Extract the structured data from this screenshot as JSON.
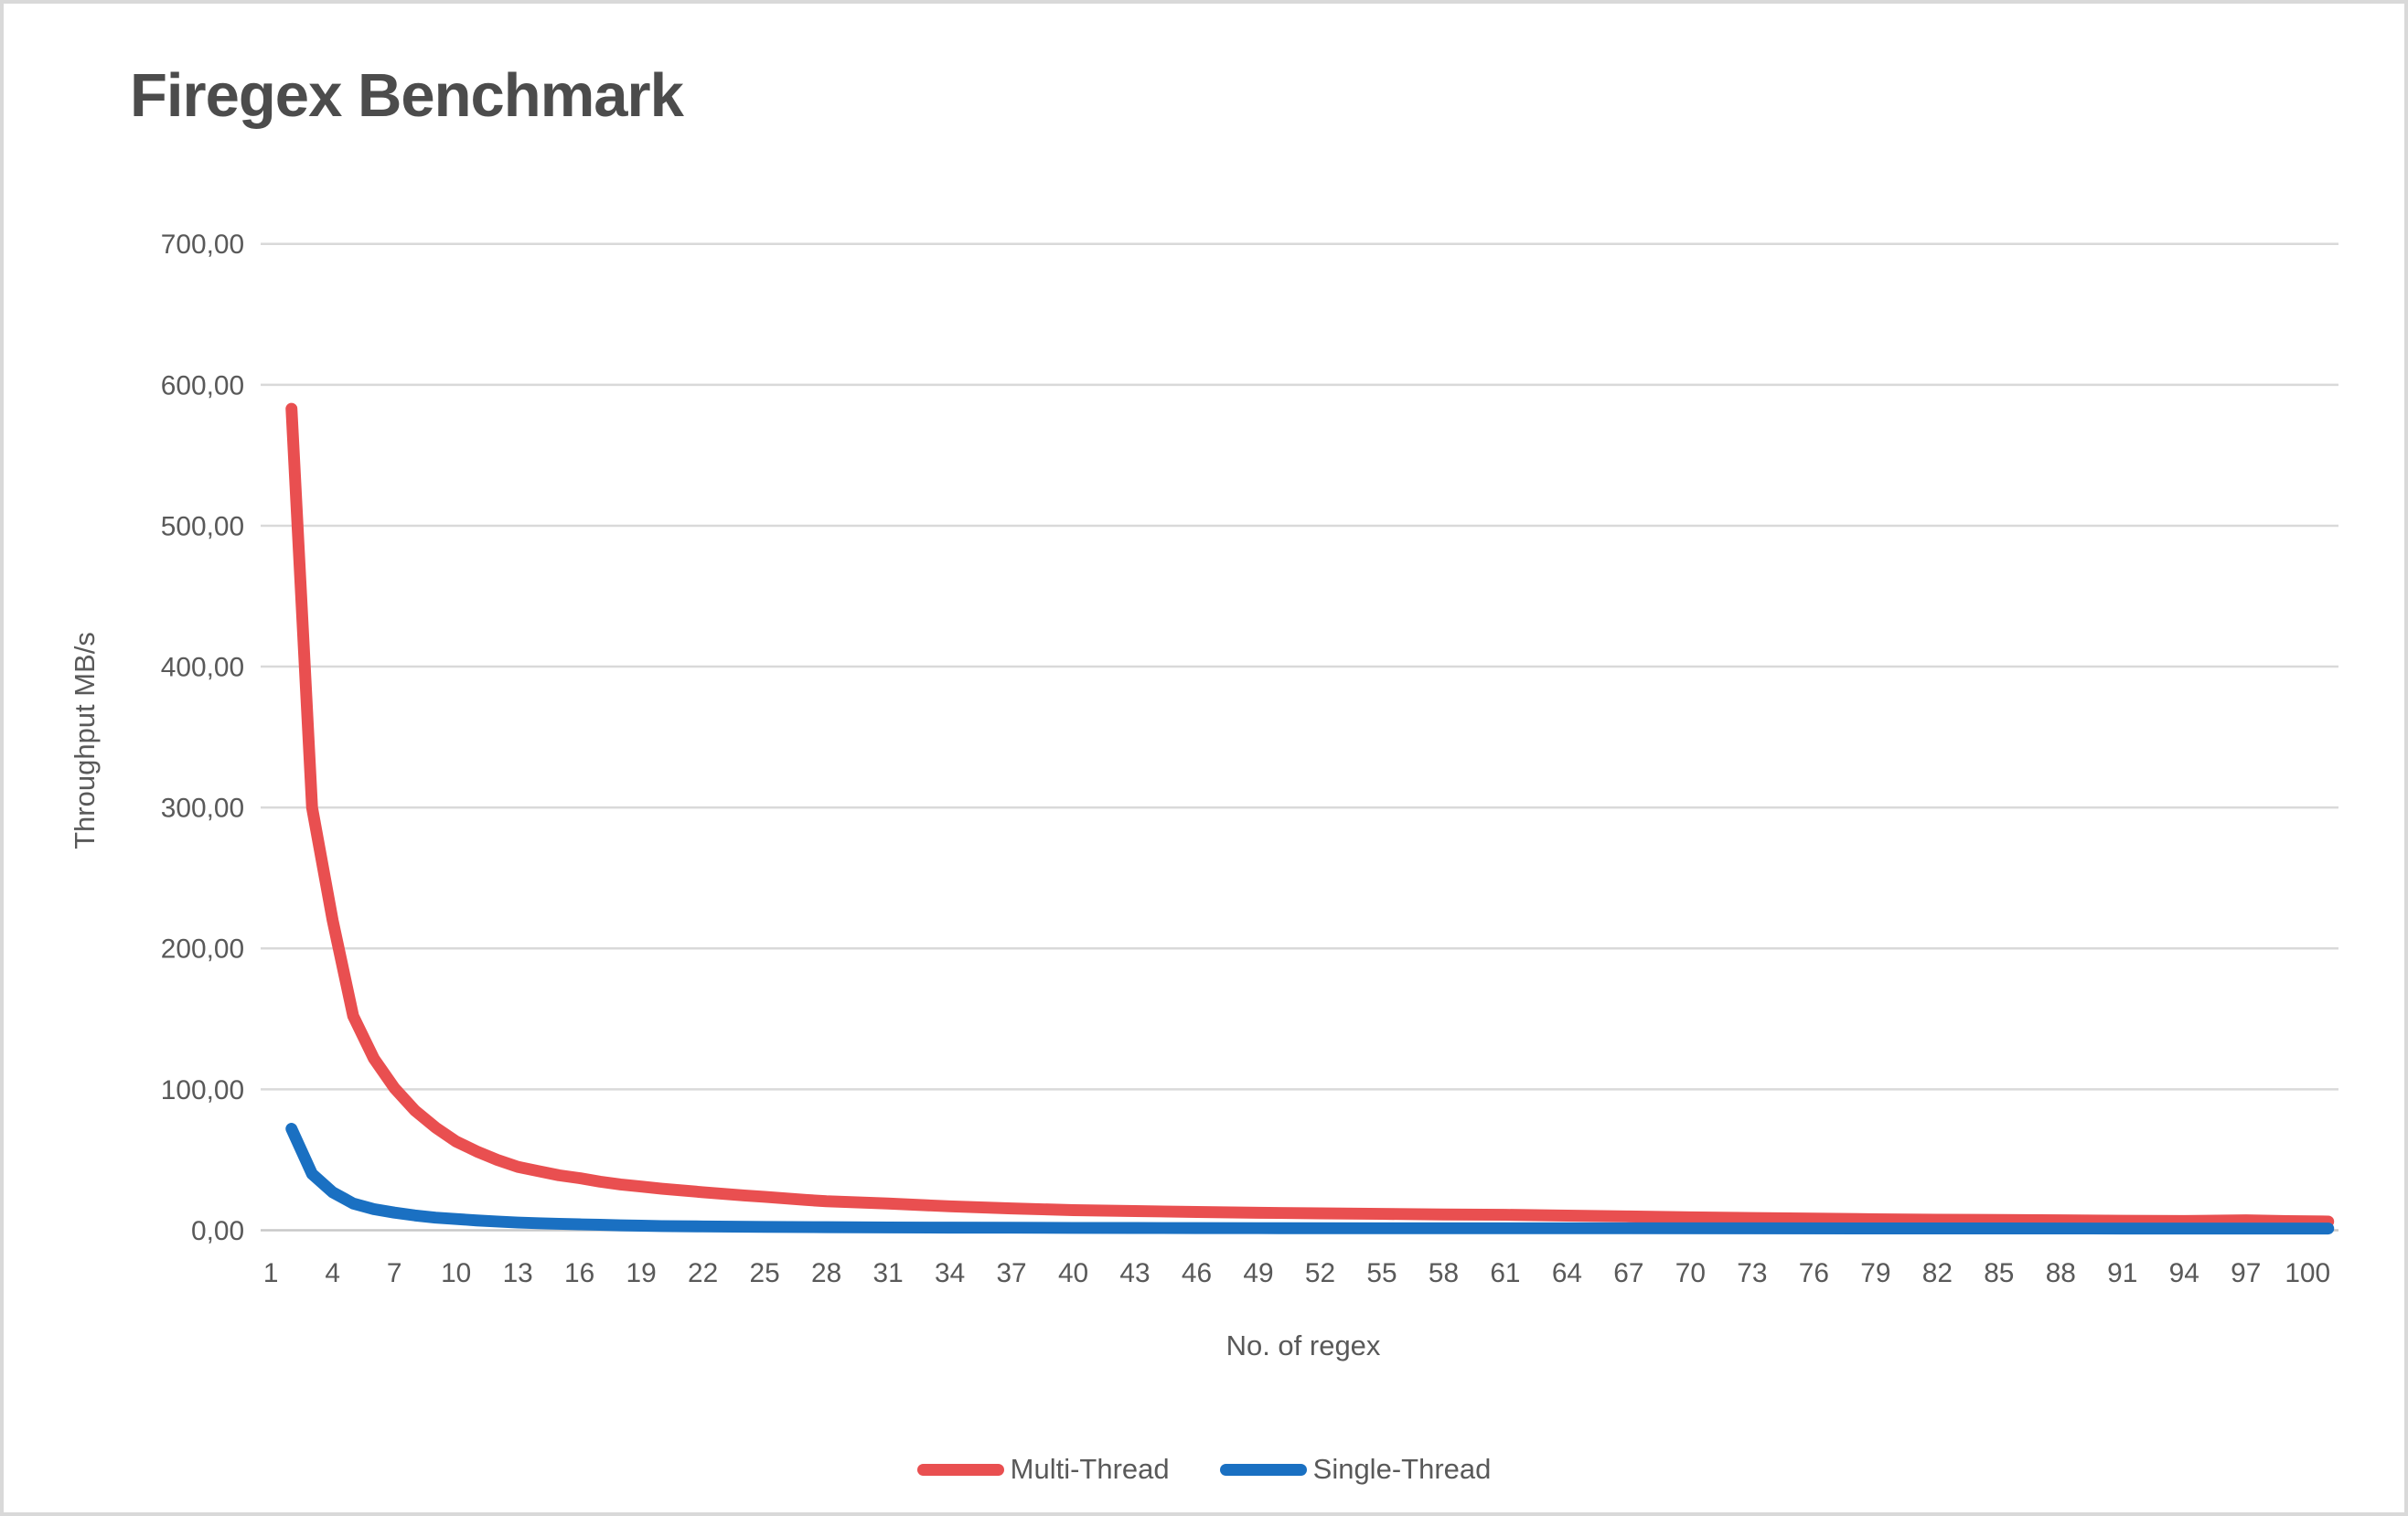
{
  "chart_data": {
    "type": "line",
    "title": "Firegex Benchmark",
    "xlabel": "No. of regex",
    "ylabel": "Throughput MB/s",
    "ylim": [
      0,
      700
    ],
    "x_categories_range": [
      1,
      101
    ],
    "grid": "horizontal-only",
    "legend_position": "bottom",
    "y_ticks": [
      {
        "value": 700,
        "label": "700,00"
      },
      {
        "value": 600,
        "label": "600,00"
      },
      {
        "value": 500,
        "label": "500,00"
      },
      {
        "value": 400,
        "label": "400,00"
      },
      {
        "value": 300,
        "label": "300,00"
      },
      {
        "value": 200,
        "label": "200,00"
      },
      {
        "value": 100,
        "label": "100,00"
      },
      {
        "value": 0,
        "label": "0,00"
      }
    ],
    "x_ticks": [
      "1",
      "4",
      "7",
      "10",
      "13",
      "16",
      "19",
      "22",
      "25",
      "28",
      "31",
      "34",
      "37",
      "40",
      "43",
      "46",
      "49",
      "52",
      "55",
      "58",
      "61",
      "64",
      "67",
      "70",
      "73",
      "76",
      "79",
      "82",
      "85",
      "88",
      "91",
      "94",
      "97",
      "100"
    ],
    "series": [
      {
        "name": "Multi-Thread",
        "color": "#e94f50",
        "points": [
          [
            2,
            583
          ],
          [
            3,
            300
          ],
          [
            4,
            220
          ],
          [
            5,
            152
          ],
          [
            6,
            122
          ],
          [
            7,
            101
          ],
          [
            8,
            85
          ],
          [
            9,
            73
          ],
          [
            10,
            63
          ],
          [
            11,
            56
          ],
          [
            12,
            50
          ],
          [
            13,
            45
          ],
          [
            14,
            42
          ],
          [
            15,
            39
          ],
          [
            16,
            37
          ],
          [
            17,
            34.5
          ],
          [
            18,
            32.5
          ],
          [
            19,
            31
          ],
          [
            20,
            29.5
          ],
          [
            22,
            27
          ],
          [
            24,
            24.7
          ],
          [
            25,
            23.7
          ],
          [
            27,
            21.5
          ],
          [
            28,
            20.6
          ],
          [
            31,
            19
          ],
          [
            34,
            17
          ],
          [
            37,
            15.5
          ],
          [
            40,
            14.3
          ],
          [
            43,
            13.6
          ],
          [
            46,
            13
          ],
          [
            49,
            12.4
          ],
          [
            52,
            12
          ],
          [
            55,
            11.6
          ],
          [
            58,
            11.2
          ],
          [
            61,
            11
          ],
          [
            64,
            10.4
          ],
          [
            67,
            9.8
          ],
          [
            70,
            9.2
          ],
          [
            73,
            8.7
          ],
          [
            76,
            8.3
          ],
          [
            79,
            7.8
          ],
          [
            82,
            7.5
          ],
          [
            85,
            7.3
          ],
          [
            88,
            7.1
          ],
          [
            91,
            6.8
          ],
          [
            94,
            6.6
          ],
          [
            97,
            7.1
          ],
          [
            99,
            6.5
          ],
          [
            101,
            6.2
          ]
        ]
      },
      {
        "name": "Single-Thread",
        "color": "#1a70c2",
        "points": [
          [
            2,
            72
          ],
          [
            3,
            40
          ],
          [
            4,
            27
          ],
          [
            5,
            19
          ],
          [
            6,
            15
          ],
          [
            7,
            12.5
          ],
          [
            8,
            10.5
          ],
          [
            9,
            9
          ],
          [
            10,
            8
          ],
          [
            11,
            7
          ],
          [
            12,
            6.2
          ],
          [
            13,
            5.5
          ],
          [
            14,
            5
          ],
          [
            15,
            4.6
          ],
          [
            16,
            4.2
          ],
          [
            17,
            3.9
          ],
          [
            18,
            3.5
          ],
          [
            19,
            3.2
          ],
          [
            20,
            3
          ],
          [
            22,
            2.7
          ],
          [
            25,
            2.4
          ],
          [
            28,
            2.2
          ],
          [
            31,
            2
          ],
          [
            34,
            1.9
          ],
          [
            37,
            1.8
          ],
          [
            40,
            1.7
          ],
          [
            43,
            1.6
          ],
          [
            46,
            1.55
          ],
          [
            49,
            1.5
          ],
          [
            55,
            1.45
          ],
          [
            61,
            1.4
          ],
          [
            67,
            1.4
          ],
          [
            73,
            1.35
          ],
          [
            79,
            1.3
          ],
          [
            85,
            1.3
          ],
          [
            91,
            1.25
          ],
          [
            97,
            1.2
          ],
          [
            101,
            1.2
          ]
        ]
      }
    ]
  },
  "style": {
    "background": "#ffffff",
    "frame_border_color": "#d9d9d9",
    "grid_color": "#d9d9d9",
    "zero_line_color": "#c8c8c8",
    "tick_text_color": "#595959",
    "title_color": "#4c4c4c",
    "line_width": 13
  }
}
